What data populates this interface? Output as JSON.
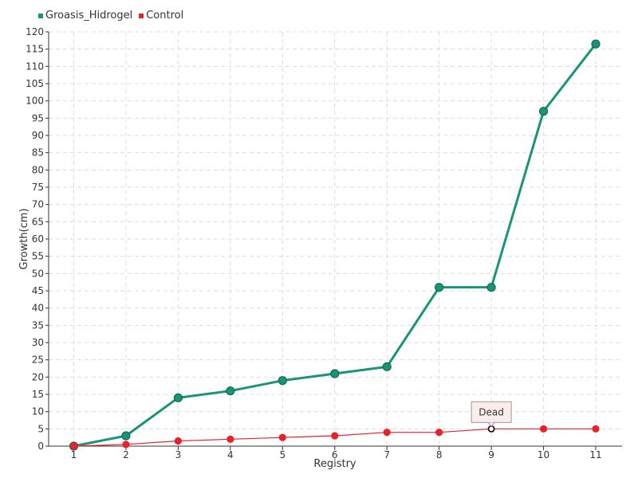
{
  "chart_data": {
    "type": "line",
    "title": "",
    "xlabel": "Registry",
    "ylabel": "Growth(cm)",
    "categories": [
      "1",
      "2",
      "3",
      "4",
      "5",
      "6",
      "7",
      "8",
      "9",
      "10",
      "11"
    ],
    "ylim": [
      0,
      120
    ],
    "ytick_step": 5,
    "grid": true,
    "legend_position": "top-left",
    "series": [
      {
        "name": "Groasis_Hidrogel",
        "color": "#1a9477",
        "values": [
          0,
          3,
          14,
          16,
          19,
          21,
          23,
          46,
          46,
          97,
          116.5
        ]
      },
      {
        "name": "Control",
        "color": "#e8222a",
        "values": [
          0,
          0.5,
          1.5,
          2,
          2.5,
          3,
          4,
          4,
          5,
          5,
          5
        ]
      }
    ],
    "annotations": [
      {
        "series": "Control",
        "category": "9",
        "text": "Dead"
      }
    ]
  }
}
